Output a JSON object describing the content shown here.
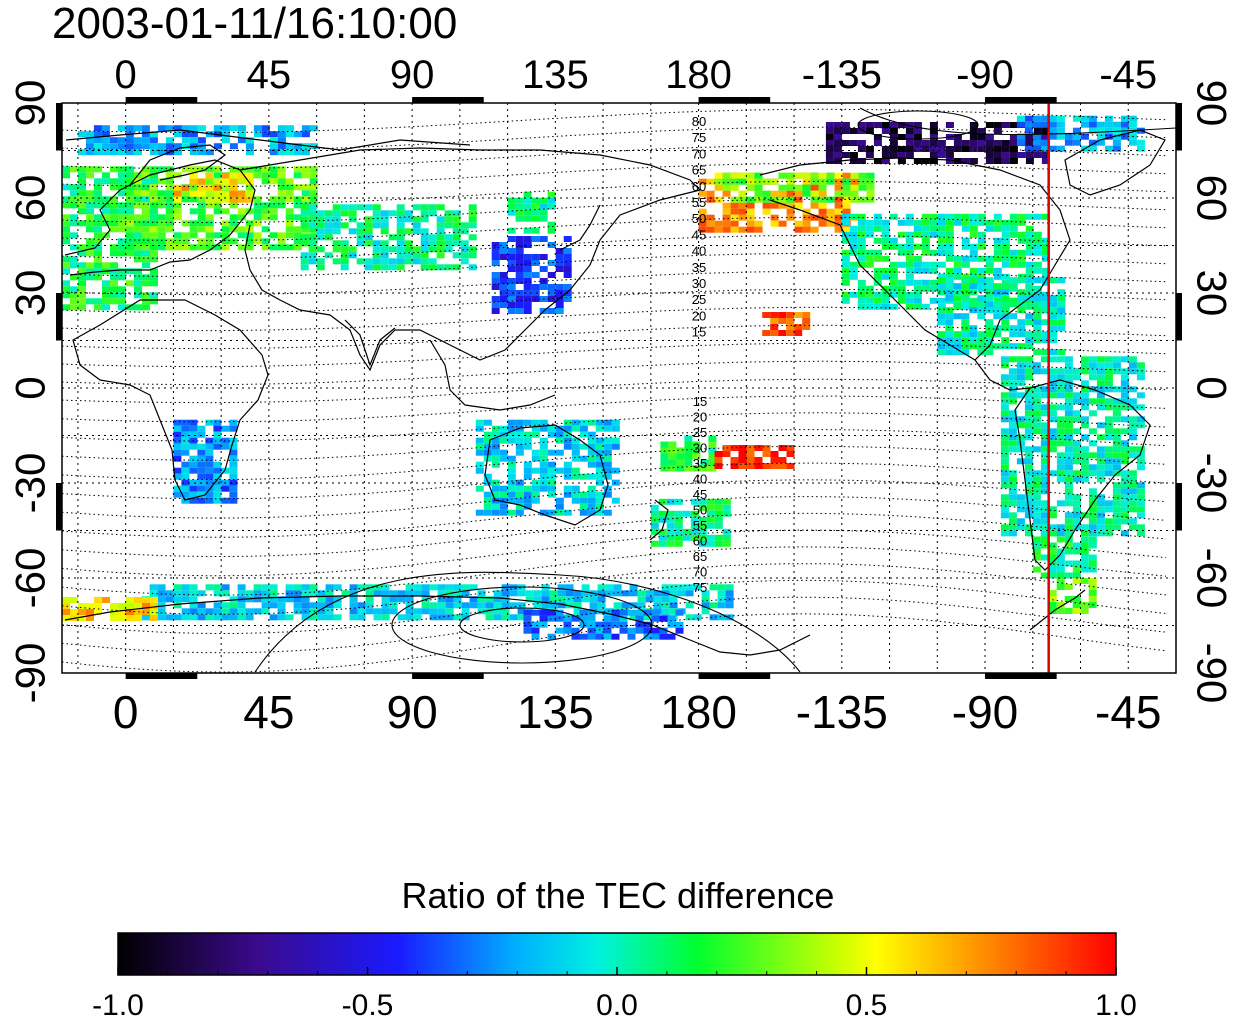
{
  "chart_data": {
    "type": "heatmap",
    "title": "2003-01-11/16:10:00",
    "x_ticks": [
      "0",
      "45",
      "90",
      "135",
      "180",
      "-135",
      "-90",
      "-45"
    ],
    "x_tick_values": [
      0,
      45,
      90,
      135,
      180,
      225,
      270,
      315
    ],
    "y_ticks": [
      "90",
      "60",
      "30",
      "0",
      "-30",
      "-60",
      "-90"
    ],
    "y_tick_values": [
      90,
      60,
      30,
      0,
      -30,
      -60,
      -90
    ],
    "xlim": [
      -20,
      330
    ],
    "ylim": [
      -90,
      90
    ],
    "grid": true,
    "red_line_longitude": -70,
    "contour_labels_north": [
      "80",
      "75",
      "70",
      "65",
      "60",
      "55",
      "50",
      "45",
      "40",
      "35",
      "30",
      "25",
      "20",
      "15"
    ],
    "contour_labels_south": [
      "15",
      "20",
      "25",
      "30",
      "35",
      "40",
      "45",
      "50",
      "55",
      "60",
      "65",
      "70",
      "75"
    ],
    "colorbar": {
      "title": "Ratio of the TEC difference",
      "ticks": [
        "-1.0",
        "-0.5",
        "0.0",
        "0.5",
        "1.0"
      ],
      "tick_values": [
        -1.0,
        -0.5,
        0.0,
        0.5,
        1.0
      ],
      "range": [
        -1.0,
        1.0
      ],
      "colors": [
        "#000000",
        "#3a0a8c",
        "#1a1aff",
        "#00f0ff",
        "#00ff30",
        "#ffff00",
        "#ff8000",
        "#ff0000"
      ]
    },
    "regions": [
      {
        "lon": [
          -20,
          10
        ],
        "lat": [
          25,
          70
        ],
        "value": 0.15
      },
      {
        "lon": [
          0,
          60
        ],
        "lat": [
          45,
          70
        ],
        "value": 0.25
      },
      {
        "lon": [
          15,
          40
        ],
        "lat": [
          60,
          68
        ],
        "value": 0.6
      },
      {
        "lon": [
          -15,
          60
        ],
        "lat": [
          75,
          83
        ],
        "value": -0.2
      },
      {
        "lon": [
          55,
          110
        ],
        "lat": [
          38,
          58
        ],
        "value": 0.05
      },
      {
        "lon": [
          115,
          140
        ],
        "lat": [
          25,
          48
        ],
        "value": -0.4
      },
      {
        "lon": [
          120,
          135
        ],
        "lat": [
          50,
          62
        ],
        "value": 0.05
      },
      {
        "lon": [
          180,
          230
        ],
        "lat": [
          50,
          68
        ],
        "value": 0.7
      },
      {
        "lon": [
          185,
          235
        ],
        "lat": [
          60,
          68
        ],
        "value": 0.3
      },
      {
        "lon": [
          220,
          290
        ],
        "lat": [
          72,
          84
        ],
        "value": -0.85
      },
      {
        "lon": [
          280,
          320
        ],
        "lat": [
          75,
          86
        ],
        "value": -0.2
      },
      {
        "lon": [
          225,
          290
        ],
        "lat": [
          25,
          55
        ],
        "value": 0.05
      },
      {
        "lon": [
          255,
          295
        ],
        "lat": [
          12,
          35
        ],
        "value": 0.0
      },
      {
        "lon": [
          275,
          320
        ],
        "lat": [
          -45,
          10
        ],
        "value": 0.0
      },
      {
        "lon": [
          285,
          305
        ],
        "lat": [
          -60,
          -45
        ],
        "value": 0.1
      },
      {
        "lon": [
          290,
          305
        ],
        "lat": [
          -70,
          -60
        ],
        "value": 0.3
      },
      {
        "lon": [
          15,
          35
        ],
        "lat": [
          -35,
          -10
        ],
        "value": -0.25
      },
      {
        "lon": [
          110,
          155
        ],
        "lat": [
          -40,
          -10
        ],
        "value": -0.1
      },
      {
        "lon": [
          165,
          190
        ],
        "lat": [
          -50,
          -35
        ],
        "value": 0.05
      },
      {
        "lon": [
          168,
          185
        ],
        "lat": [
          -25,
          -15
        ],
        "value": 0.15
      },
      {
        "lon": [
          185,
          210
        ],
        "lat": [
          -25,
          -18
        ],
        "value": 0.95
      },
      {
        "lon": [
          200,
          215
        ],
        "lat": [
          18,
          24
        ],
        "value": 0.85
      },
      {
        "lon": [
          5,
          190
        ],
        "lat": [
          -72,
          -62
        ],
        "value": -0.1
      },
      {
        "lon": [
          -20,
          10
        ],
        "lat": [
          -72,
          -66
        ],
        "value": 0.6
      },
      {
        "lon": [
          125,
          175
        ],
        "lat": [
          -78,
          -70
        ],
        "value": -0.3
      }
    ]
  }
}
